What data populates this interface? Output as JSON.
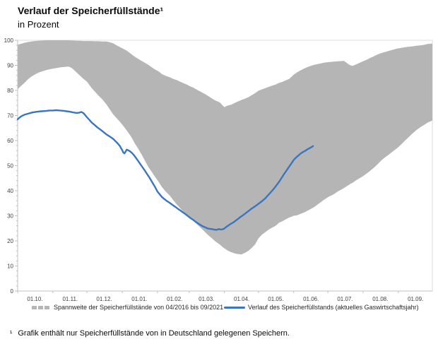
{
  "title": "Verlauf der Speicherfüllstände¹",
  "subtitle": "in Prozent",
  "legend": {
    "band_label": "Spannweite der Speicherfüllstände von 04/2016 bis 09/2021",
    "line_label": "Verlauf des Speicherfüllstands (aktuelles Gaswirtschaftsjahr)"
  },
  "footnote": {
    "marker": "¹",
    "text": "Grafik enthält nur Speicherfüllstände von in Deutschland gelegenen Speichern."
  },
  "colors": {
    "band": "#b5b5b5",
    "line": "#3a76bf",
    "axis": "#c0c0c0",
    "frame": "#dcdcdc",
    "tick_text": "#3f3f3f"
  },
  "chart_data": {
    "type": "area",
    "subtype": "band-with-line",
    "title": "Verlauf der Speicherfüllstände",
    "subtitle": "in Prozent",
    "ylabel": "Prozent",
    "grid": false,
    "legend_position": "bottom",
    "y_axis": {
      "min": 0,
      "max": 100,
      "major_step": 10,
      "minor_step": 2,
      "tick_values": [
        0,
        10,
        20,
        30,
        40,
        50,
        60,
        70,
        80,
        90,
        100
      ]
    },
    "x_axis": {
      "range_days": [
        0,
        365
      ],
      "tick_labels": [
        "01.10.",
        "01.11.",
        "01.12.",
        "01.01.",
        "01.02.",
        "01.03.",
        "01.04.",
        "01.05.",
        "01.06.",
        "01.07.",
        "01.08.",
        "01.09."
      ],
      "month_start_days": [
        0,
        31,
        61,
        92,
        123,
        151,
        182,
        212,
        243,
        273,
        304,
        335
      ]
    },
    "band": {
      "name": "Spannweite der Speicherfüllstände von 04/2016 bis 09/2021",
      "color": "#b5b5b5",
      "points_day_lower_upper": [
        [
          0,
          80.5,
          98.2
        ],
        [
          3,
          81.8,
          98.6
        ],
        [
          6,
          83,
          99
        ],
        [
          9,
          84.4,
          99.3
        ],
        [
          12,
          85.5,
          99.5
        ],
        [
          15,
          86.3,
          99.7
        ],
        [
          18,
          87,
          99.8
        ],
        [
          22,
          87.7,
          99.9
        ],
        [
          26,
          88.2,
          100
        ],
        [
          30,
          88.6,
          100
        ],
        [
          34,
          88.9,
          100
        ],
        [
          38,
          89.2,
          100
        ],
        [
          42,
          89.4,
          100
        ],
        [
          45,
          89.5,
          100
        ],
        [
          48,
          88.8,
          99.9
        ],
        [
          52,
          87.1,
          99.8
        ],
        [
          55,
          85.8,
          99.8
        ],
        [
          58,
          84.6,
          99.7
        ],
        [
          61,
          83.5,
          99.7
        ],
        [
          65,
          81,
          99.7
        ],
        [
          68,
          79.5,
          99.6
        ],
        [
          71,
          78,
          99.6
        ],
        [
          75,
          76.2,
          99.5
        ],
        [
          78,
          74.5,
          99.5
        ],
        [
          81,
          72.5,
          99.2
        ],
        [
          84,
          70.5,
          98.8
        ],
        [
          87,
          69,
          98
        ],
        [
          90,
          67.5,
          97.3
        ],
        [
          93,
          65.8,
          96.6
        ],
        [
          96,
          64,
          95.9
        ],
        [
          100,
          61.5,
          94.5
        ],
        [
          103,
          59,
          93.5
        ],
        [
          106,
          56.8,
          92.6
        ],
        [
          109,
          54.5,
          91.8
        ],
        [
          112,
          52,
          91
        ],
        [
          115,
          49.5,
          90.2
        ],
        [
          118,
          47.5,
          89.2
        ],
        [
          121,
          45.5,
          88.3
        ],
        [
          124,
          43.6,
          87.6
        ],
        [
          127,
          41.5,
          86.5
        ],
        [
          130,
          39.8,
          85.9
        ],
        [
          134,
          38,
          85.2
        ],
        [
          137,
          36.2,
          84.6
        ],
        [
          140,
          34.5,
          84.1
        ],
        [
          143,
          33,
          83.5
        ],
        [
          146,
          31.5,
          82.9
        ],
        [
          149,
          30.4,
          82.3
        ],
        [
          151,
          29.5,
          81.8
        ],
        [
          155,
          27.9,
          81
        ],
        [
          158,
          26.5,
          80.2
        ],
        [
          161,
          25.3,
          79.5
        ],
        [
          165,
          23.5,
          78.5
        ],
        [
          168,
          22.2,
          77.7
        ],
        [
          171,
          21,
          76.8
        ],
        [
          174,
          19.8,
          76
        ],
        [
          178,
          18.5,
          75.2
        ],
        [
          180,
          17.7,
          74.2
        ],
        [
          182,
          17,
          73.3
        ],
        [
          184,
          16.4,
          73.8
        ],
        [
          186,
          15.9,
          74.1
        ],
        [
          188,
          15.5,
          74.3
        ],
        [
          191,
          15,
          75
        ],
        [
          193,
          14.8,
          75.4
        ],
        [
          197,
          14.6,
          76.2
        ],
        [
          200,
          15.2,
          76.7
        ],
        [
          203,
          16,
          77.3
        ],
        [
          206,
          17.2,
          78.1
        ],
        [
          209,
          18.6,
          78.9
        ],
        [
          212,
          21,
          79.9
        ],
        [
          215,
          22.5,
          80.4
        ],
        [
          218,
          23.5,
          80.9
        ],
        [
          221,
          24.5,
          81.4
        ],
        [
          224,
          25.3,
          81.9
        ],
        [
          227,
          26,
          82.3
        ],
        [
          230,
          27.2,
          83
        ],
        [
          233,
          27.8,
          83.4
        ],
        [
          236,
          28.6,
          84
        ],
        [
          239,
          29.3,
          84.6
        ],
        [
          243,
          30,
          86.3
        ],
        [
          246,
          30.2,
          87.2
        ],
        [
          249,
          30.8,
          88
        ],
        [
          252,
          31.3,
          88.7
        ],
        [
          255,
          32,
          89.3
        ],
        [
          258,
          32.7,
          89.8
        ],
        [
          261,
          33.5,
          90.2
        ],
        [
          264,
          34.5,
          90.5
        ],
        [
          267,
          35.5,
          90.8
        ],
        [
          270,
          36.5,
          91.1
        ],
        [
          274,
          37.7,
          91.3
        ],
        [
          278,
          38.5,
          91.5
        ],
        [
          282,
          39.8,
          91.6
        ],
        [
          285,
          40.5,
          91.7
        ],
        [
          287,
          41,
          91.8
        ],
        [
          289,
          41.6,
          91.2
        ],
        [
          291,
          42.2,
          90.5
        ],
        [
          293,
          42.8,
          90
        ],
        [
          295,
          43.2,
          89.8
        ],
        [
          298,
          44.2,
          90.4
        ],
        [
          301,
          45,
          91
        ],
        [
          304,
          45.8,
          91.6
        ],
        [
          307,
          46.8,
          92.2
        ],
        [
          310,
          47.8,
          92.9
        ],
        [
          313,
          49,
          93.5
        ],
        [
          316,
          50.2,
          94.2
        ],
        [
          320,
          52,
          94.9
        ],
        [
          323,
          53.2,
          95.3
        ],
        [
          327,
          54.5,
          95.8
        ],
        [
          330,
          55.6,
          96.2
        ],
        [
          334,
          57,
          96.7
        ],
        [
          337,
          58.2,
          96.9
        ],
        [
          341,
          60,
          97.2
        ],
        [
          344,
          61.3,
          97.4
        ],
        [
          348,
          63,
          97.6
        ],
        [
          351,
          64.2,
          97.8
        ],
        [
          355,
          65.5,
          98
        ],
        [
          358,
          66.3,
          98.2
        ],
        [
          361,
          67.2,
          98.5
        ],
        [
          365,
          68,
          98.7
        ]
      ]
    },
    "line": {
      "name": "Verlauf des Speicherfüllstands (aktuelles Gaswirtschaftsjahr)",
      "color": "#3a76bf",
      "points_day_value": [
        [
          0,
          68.5
        ],
        [
          2,
          69.3
        ],
        [
          4,
          69.9
        ],
        [
          6,
          70.3
        ],
        [
          9,
          70.7
        ],
        [
          13,
          71.2
        ],
        [
          17,
          71.5
        ],
        [
          21,
          71.7
        ],
        [
          25,
          71.8
        ],
        [
          28,
          72
        ],
        [
          31,
          72
        ],
        [
          34,
          72.1
        ],
        [
          37,
          72
        ],
        [
          40,
          71.9
        ],
        [
          43,
          71.7
        ],
        [
          46,
          71.5
        ],
        [
          49,
          71.2
        ],
        [
          52,
          71
        ],
        [
          54,
          71.1
        ],
        [
          56,
          71.4
        ],
        [
          58,
          70.9
        ],
        [
          61,
          69.3
        ],
        [
          63,
          68.3
        ],
        [
          65,
          67.3
        ],
        [
          68,
          66.1
        ],
        [
          70,
          65.3
        ],
        [
          73,
          64.3
        ],
        [
          75,
          63.6
        ],
        [
          78,
          62.5
        ],
        [
          81,
          61.6
        ],
        [
          84,
          60.7
        ],
        [
          86,
          59.8
        ],
        [
          88,
          58.9
        ],
        [
          90,
          57.8
        ],
        [
          91,
          57
        ],
        [
          92,
          56.2
        ],
        [
          93,
          55.2
        ],
        [
          94,
          54.9
        ],
        [
          95,
          55.6
        ],
        [
          96,
          56.4
        ],
        [
          97,
          56.2
        ],
        [
          99,
          55.7
        ],
        [
          101,
          54.9
        ],
        [
          103,
          53.8
        ],
        [
          106,
          51.9
        ],
        [
          108,
          50.6
        ],
        [
          110,
          49.3
        ],
        [
          112,
          48
        ],
        [
          114,
          46.6
        ],
        [
          116,
          45.2
        ],
        [
          118,
          43.7
        ],
        [
          120,
          42.2
        ],
        [
          121,
          41.4
        ],
        [
          123,
          39.7
        ],
        [
          125,
          38.6
        ],
        [
          127,
          37.5
        ],
        [
          129,
          36.7
        ],
        [
          131,
          36
        ],
        [
          133,
          35.4
        ],
        [
          135,
          34.8
        ],
        [
          137,
          34.1
        ],
        [
          139,
          33.5
        ],
        [
          141,
          32.8
        ],
        [
          143,
          32.2
        ],
        [
          145,
          31.5
        ],
        [
          147,
          30.9
        ],
        [
          149,
          30.2
        ],
        [
          151,
          29.5
        ],
        [
          153,
          28.8
        ],
        [
          155,
          28.2
        ],
        [
          157,
          27.5
        ],
        [
          159,
          26.9
        ],
        [
          161,
          26.3
        ],
        [
          163,
          25.8
        ],
        [
          165,
          25.4
        ],
        [
          167,
          25
        ],
        [
          169,
          24.8
        ],
        [
          171,
          24.7
        ],
        [
          173,
          24.5
        ],
        [
          175,
          24.4
        ],
        [
          177,
          24.7
        ],
        [
          179,
          24.5
        ],
        [
          181,
          24.7
        ],
        [
          182,
          25
        ],
        [
          184,
          25.7
        ],
        [
          186,
          26.3
        ],
        [
          188,
          26.9
        ],
        [
          190,
          27.4
        ],
        [
          192,
          28.1
        ],
        [
          194,
          28.8
        ],
        [
          196,
          29.5
        ],
        [
          198,
          30.1
        ],
        [
          200,
          30.8
        ],
        [
          202,
          31.5
        ],
        [
          204,
          32.2
        ],
        [
          206,
          32.9
        ],
        [
          208,
          33.5
        ],
        [
          210,
          34.1
        ],
        [
          212,
          34.8
        ],
        [
          214,
          35.5
        ],
        [
          216,
          36.2
        ],
        [
          218,
          37
        ],
        [
          220,
          38
        ],
        [
          222,
          39
        ],
        [
          224,
          40
        ],
        [
          226,
          41.1
        ],
        [
          228,
          42.3
        ],
        [
          230,
          43.5
        ],
        [
          232,
          44.9
        ],
        [
          234,
          46.3
        ],
        [
          236,
          47.6
        ],
        [
          238,
          49
        ],
        [
          240,
          50.3
        ],
        [
          242,
          51.6
        ],
        [
          243,
          52.3
        ],
        [
          245,
          53.2
        ],
        [
          247,
          54
        ],
        [
          249,
          54.8
        ],
        [
          251,
          55.4
        ],
        [
          253,
          55.9
        ],
        [
          255,
          56.5
        ],
        [
          257,
          57
        ],
        [
          259,
          57.5
        ],
        [
          260,
          57.8
        ]
      ]
    }
  }
}
